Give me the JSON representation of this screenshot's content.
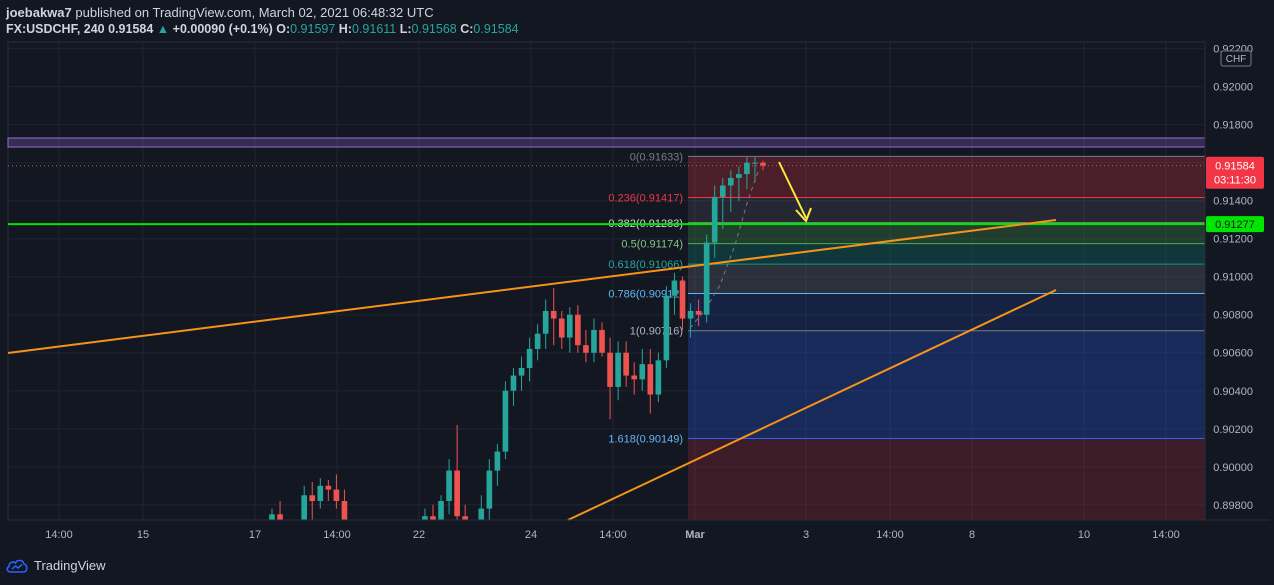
{
  "header": {
    "author": "joebakwa7",
    "published_text": "published on TradingView.com, March 02, 2021 06:48:32 UTC",
    "symbol": "FX:USDCHF, 240",
    "last": "0.91584",
    "change": "+0.00090 (+0.1%)",
    "o_label": "O:",
    "o_val": "0.91597",
    "h_label": "H:",
    "h_val": "0.91611",
    "l_label": "L:",
    "l_val": "0.91568",
    "c_label": "C:",
    "c_val": "0.91584"
  },
  "footer": {
    "brand": "TradingView"
  },
  "colors": {
    "bg": "#131722",
    "up": "#26a69a",
    "down": "#ef5350",
    "grid": "#1f2430",
    "orange": "#f7931a",
    "green_line": "#00e600",
    "purple": "#9c6ade",
    "yellow_arrow": "#ffeb3b"
  },
  "chart_data": {
    "type": "candlestick",
    "symbol": "FX:USDCHF",
    "interval": "240",
    "currency_label": "CHF",
    "ylim": [
      0.897,
      0.9225
    ],
    "y_ticks": [
      "0.92200",
      "0.92000",
      "0.91800",
      "0.91600",
      "0.91400",
      "0.91200",
      "0.91000",
      "0.90800",
      "0.90600",
      "0.90400",
      "0.90200",
      "0.90000",
      "0.89800"
    ],
    "x_ticks": [
      "14:00",
      "15",
      "17",
      "14:00",
      "22",
      "24",
      "14:00",
      "Mar",
      "3",
      "14:00",
      "8",
      "10",
      "14:00"
    ],
    "last_price_label": {
      "price": "0.91584",
      "countdown": "03:11:30"
    },
    "green_line_label": "0.91277",
    "fib_levels": [
      {
        "label": "0(0.91633)",
        "ratio": 0,
        "price": 0.91633
      },
      {
        "label": "0.236(0.91417)",
        "ratio": 0.236,
        "price": 0.91417
      },
      {
        "label": "0.382(0.91283)",
        "ratio": 0.382,
        "price": 0.91283
      },
      {
        "label": "0.5(0.91174)",
        "ratio": 0.5,
        "price": 0.91174
      },
      {
        "label": "0.618(0.91066)",
        "ratio": 0.618,
        "price": 0.91066
      },
      {
        "label": "0.786(0.90912)",
        "ratio": 0.786,
        "price": 0.90912
      },
      {
        "label": "1(0.90716)",
        "ratio": 1,
        "price": 0.90716
      },
      {
        "label": "1.618(0.90149)",
        "ratio": 1.618,
        "price": 0.90149
      }
    ],
    "candles": [
      {
        "o": 0.8962,
        "h": 0.8978,
        "l": 0.8955,
        "c": 0.8975
      },
      {
        "o": 0.8975,
        "h": 0.8982,
        "l": 0.8968,
        "c": 0.897
      },
      {
        "o": 0.897,
        "h": 0.8976,
        "l": 0.896,
        "c": 0.8972
      },
      {
        "o": 0.8972,
        "h": 0.898,
        "l": 0.8966,
        "c": 0.8966
      },
      {
        "o": 0.8966,
        "h": 0.899,
        "l": 0.8962,
        "c": 0.8985
      },
      {
        "o": 0.8985,
        "h": 0.8992,
        "l": 0.8968,
        "c": 0.8982
      },
      {
        "o": 0.8982,
        "h": 0.8994,
        "l": 0.8978,
        "c": 0.899
      },
      {
        "o": 0.899,
        "h": 0.8993,
        "l": 0.8982,
        "c": 0.8988
      },
      {
        "o": 0.8988,
        "h": 0.8996,
        "l": 0.8978,
        "c": 0.8982
      },
      {
        "o": 0.8982,
        "h": 0.8988,
        "l": 0.8965,
        "c": 0.8968
      },
      {
        "o": 0.8968,
        "h": 0.8975,
        "l": 0.896,
        "c": 0.8972
      },
      {
        "o": 0.8972,
        "h": 0.8978,
        "l": 0.8962,
        "c": 0.8966
      },
      {
        "o": 0.8966,
        "h": 0.8972,
        "l": 0.8958,
        "c": 0.8962
      },
      {
        "o": 0.8962,
        "h": 0.897,
        "l": 0.8955,
        "c": 0.896
      },
      {
        "o": 0.896,
        "h": 0.8968,
        "l": 0.8952,
        "c": 0.8958
      },
      {
        "o": 0.8958,
        "h": 0.8966,
        "l": 0.895,
        "c": 0.8962
      },
      {
        "o": 0.8962,
        "h": 0.897,
        "l": 0.8958,
        "c": 0.8965
      },
      {
        "o": 0.8965,
        "h": 0.8975,
        "l": 0.896,
        "c": 0.8968
      },
      {
        "o": 0.8968,
        "h": 0.8975,
        "l": 0.8962,
        "c": 0.8966
      },
      {
        "o": 0.8966,
        "h": 0.8978,
        "l": 0.8962,
        "c": 0.8974
      },
      {
        "o": 0.8974,
        "h": 0.898,
        "l": 0.8966,
        "c": 0.897
      },
      {
        "o": 0.897,
        "h": 0.8985,
        "l": 0.8962,
        "c": 0.8982
      },
      {
        "o": 0.8982,
        "h": 0.9004,
        "l": 0.8975,
        "c": 0.8998
      },
      {
        "o": 0.8998,
        "h": 0.9022,
        "l": 0.897,
        "c": 0.8974
      },
      {
        "o": 0.8974,
        "h": 0.898,
        "l": 0.896,
        "c": 0.8966
      },
      {
        "o": 0.8966,
        "h": 0.8978,
        "l": 0.8958,
        "c": 0.8972
      },
      {
        "o": 0.8972,
        "h": 0.8985,
        "l": 0.8965,
        "c": 0.8978
      },
      {
        "o": 0.8978,
        "h": 0.9004,
        "l": 0.897,
        "c": 0.8998
      },
      {
        "o": 0.8998,
        "h": 0.9012,
        "l": 0.899,
        "c": 0.9008
      },
      {
        "o": 0.9008,
        "h": 0.9045,
        "l": 0.9004,
        "c": 0.904
      },
      {
        "o": 0.904,
        "h": 0.9052,
        "l": 0.9032,
        "c": 0.9048
      },
      {
        "o": 0.9048,
        "h": 0.9058,
        "l": 0.904,
        "c": 0.9052
      },
      {
        "o": 0.9052,
        "h": 0.9068,
        "l": 0.9045,
        "c": 0.9062
      },
      {
        "o": 0.9062,
        "h": 0.9075,
        "l": 0.9056,
        "c": 0.907
      },
      {
        "o": 0.907,
        "h": 0.9088,
        "l": 0.9062,
        "c": 0.9082
      },
      {
        "o": 0.9082,
        "h": 0.9094,
        "l": 0.9064,
        "c": 0.9078
      },
      {
        "o": 0.9078,
        "h": 0.9082,
        "l": 0.9062,
        "c": 0.9068
      },
      {
        "o": 0.9068,
        "h": 0.9084,
        "l": 0.906,
        "c": 0.908
      },
      {
        "o": 0.908,
        "h": 0.9085,
        "l": 0.906,
        "c": 0.9064
      },
      {
        "o": 0.9064,
        "h": 0.9072,
        "l": 0.9055,
        "c": 0.906
      },
      {
        "o": 0.906,
        "h": 0.9078,
        "l": 0.9055,
        "c": 0.9072
      },
      {
        "o": 0.9072,
        "h": 0.9076,
        "l": 0.9058,
        "c": 0.906
      },
      {
        "o": 0.906,
        "h": 0.9068,
        "l": 0.9025,
        "c": 0.9042
      },
      {
        "o": 0.9042,
        "h": 0.9066,
        "l": 0.9035,
        "c": 0.906
      },
      {
        "o": 0.906,
        "h": 0.9066,
        "l": 0.9042,
        "c": 0.9048
      },
      {
        "o": 0.9048,
        "h": 0.9055,
        "l": 0.9038,
        "c": 0.9046
      },
      {
        "o": 0.9046,
        "h": 0.9062,
        "l": 0.904,
        "c": 0.9054
      },
      {
        "o": 0.9054,
        "h": 0.9062,
        "l": 0.9028,
        "c": 0.9038
      },
      {
        "o": 0.9038,
        "h": 0.906,
        "l": 0.9034,
        "c": 0.9056
      },
      {
        "o": 0.9056,
        "h": 0.9095,
        "l": 0.9052,
        "c": 0.909
      },
      {
        "o": 0.909,
        "h": 0.9102,
        "l": 0.908,
        "c": 0.9098
      },
      {
        "o": 0.9098,
        "h": 0.91,
        "l": 0.9072,
        "c": 0.9078
      },
      {
        "o": 0.9078,
        "h": 0.9086,
        "l": 0.9068,
        "c": 0.9082
      },
      {
        "o": 0.9082,
        "h": 0.9088,
        "l": 0.9074,
        "c": 0.908
      },
      {
        "o": 0.908,
        "h": 0.9122,
        "l": 0.9076,
        "c": 0.9118
      },
      {
        "o": 0.9118,
        "h": 0.9148,
        "l": 0.911,
        "c": 0.9142
      },
      {
        "o": 0.9142,
        "h": 0.9152,
        "l": 0.9125,
        "c": 0.9148
      },
      {
        "o": 0.9148,
        "h": 0.9156,
        "l": 0.9134,
        "c": 0.9152
      },
      {
        "o": 0.9152,
        "h": 0.9158,
        "l": 0.914,
        "c": 0.9154
      },
      {
        "o": 0.9154,
        "h": 0.9163,
        "l": 0.9146,
        "c": 0.916
      },
      {
        "o": 0.916,
        "h": 0.9163,
        "l": 0.915,
        "c": 0.916
      },
      {
        "o": 0.916,
        "h": 0.9161,
        "l": 0.9156,
        "c": 0.91584
      }
    ]
  }
}
